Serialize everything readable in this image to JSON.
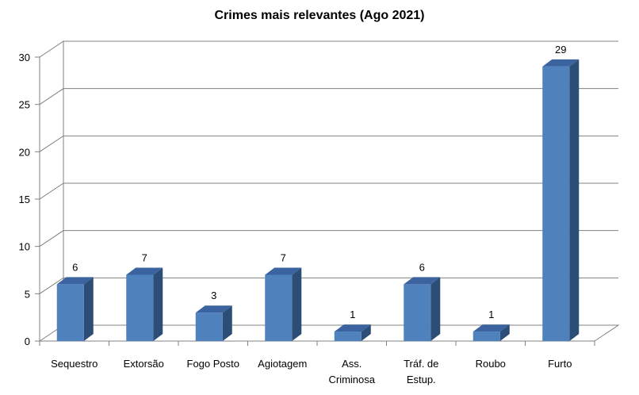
{
  "chart_data": {
    "type": "bar",
    "title": "Crimes mais relevantes (Ago 2021)",
    "categories": [
      [
        "Sequestro"
      ],
      [
        "Extorsão"
      ],
      [
        "Fogo Posto"
      ],
      [
        "Agiotagem"
      ],
      [
        "Ass.",
        "Criminosa"
      ],
      [
        "Tráf. de",
        "Estup."
      ],
      [
        "Roubo"
      ],
      [
        "Furto"
      ]
    ],
    "values": [
      6,
      7,
      3,
      7,
      1,
      6,
      1,
      29
    ],
    "y_ticks": [
      "0",
      "5",
      "10",
      "15",
      "20",
      "25",
      "30"
    ],
    "ylim": [
      0,
      30
    ],
    "grid": true,
    "legend": "none",
    "colors": {
      "bar_front": "#4f81bd",
      "bar_side": "#2c4d75",
      "bar_top": "#3a63a0",
      "grid": "#808080"
    }
  }
}
